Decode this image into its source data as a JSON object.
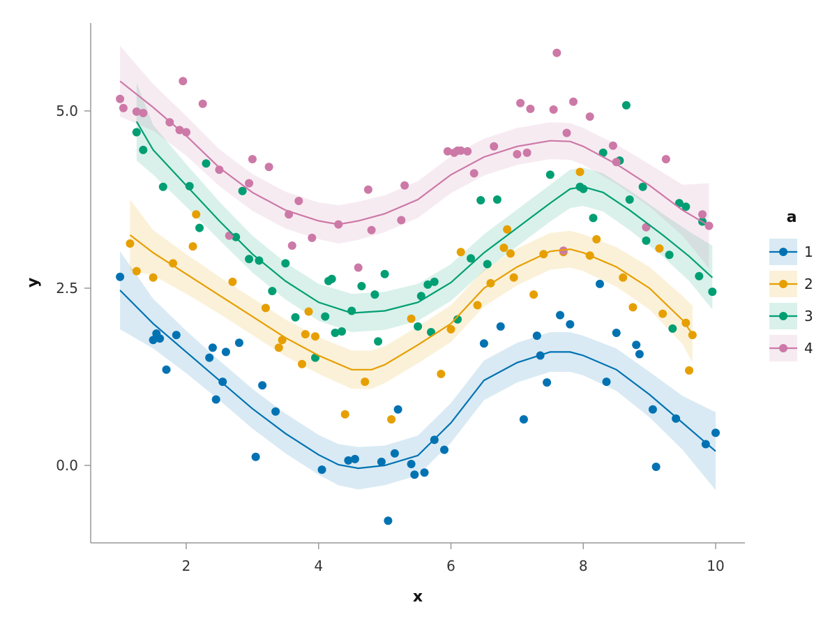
{
  "chart_data": {
    "type": "scatter",
    "xlabel": "x",
    "ylabel": "y",
    "xlim": [
      0.5,
      10.5
    ],
    "ylim": [
      -1.1,
      6.2
    ],
    "xticks": [
      2,
      4,
      6,
      8,
      10
    ],
    "xtick_labels": [
      "2",
      "4",
      "6",
      "8",
      "10"
    ],
    "yticks": [
      0.0,
      2.5,
      5.0
    ],
    "ytick_labels": [
      "0.0",
      "2.5",
      "5.0"
    ],
    "grid": false,
    "legend": {
      "title": "a",
      "position": "right"
    },
    "series": [
      {
        "name": "1",
        "color": "#0072B2",
        "points": [
          [
            1.0,
            2.66
          ],
          [
            1.5,
            1.77
          ],
          [
            1.55,
            1.86
          ],
          [
            1.6,
            1.79
          ],
          [
            1.7,
            1.35
          ],
          [
            1.85,
            1.84
          ],
          [
            2.35,
            1.52
          ],
          [
            2.4,
            1.66
          ],
          [
            2.45,
            0.93
          ],
          [
            2.55,
            1.18
          ],
          [
            2.6,
            1.6
          ],
          [
            2.8,
            1.73
          ],
          [
            3.05,
            0.12
          ],
          [
            3.15,
            1.13
          ],
          [
            3.35,
            0.76
          ],
          [
            4.05,
            -0.06
          ],
          [
            4.45,
            0.07
          ],
          [
            4.55,
            0.09
          ],
          [
            4.95,
            0.05
          ],
          [
            5.05,
            -0.78
          ],
          [
            5.15,
            0.17
          ],
          [
            5.2,
            0.79
          ],
          [
            5.4,
            0.02
          ],
          [
            5.45,
            -0.13
          ],
          [
            5.6,
            -0.1
          ],
          [
            5.75,
            0.36
          ],
          [
            5.9,
            0.22
          ],
          [
            6.5,
            1.72
          ],
          [
            6.75,
            1.96
          ],
          [
            7.1,
            0.65
          ],
          [
            7.3,
            1.83
          ],
          [
            7.35,
            1.55
          ],
          [
            7.45,
            1.17
          ],
          [
            7.65,
            2.12
          ],
          [
            7.8,
            1.99
          ],
          [
            8.25,
            2.56
          ],
          [
            8.35,
            1.18
          ],
          [
            8.5,
            1.87
          ],
          [
            8.8,
            1.7
          ],
          [
            8.85,
            1.57
          ],
          [
            9.05,
            0.79
          ],
          [
            9.1,
            -0.02
          ],
          [
            9.4,
            0.66
          ],
          [
            9.85,
            0.3
          ],
          [
            10.0,
            0.46
          ]
        ],
        "fit": [
          [
            1.0,
            2.47
          ],
          [
            1.5,
            2.0
          ],
          [
            2.0,
            1.6
          ],
          [
            2.5,
            1.2
          ],
          [
            3.0,
            0.8
          ],
          [
            3.5,
            0.45
          ],
          [
            4.0,
            0.15
          ],
          [
            4.3,
            0.01
          ],
          [
            4.6,
            -0.04
          ],
          [
            5.0,
            0.0
          ],
          [
            5.5,
            0.14
          ],
          [
            6.0,
            0.6
          ],
          [
            6.5,
            1.2
          ],
          [
            7.0,
            1.45
          ],
          [
            7.5,
            1.6
          ],
          [
            7.8,
            1.6
          ],
          [
            8.0,
            1.55
          ],
          [
            8.5,
            1.35
          ],
          [
            9.0,
            1.0
          ],
          [
            9.5,
            0.6
          ],
          [
            10.0,
            0.2
          ]
        ],
        "band": [
          0.55,
          0.35,
          0.3,
          0.28,
          0.28,
          0.28,
          0.28,
          0.29,
          0.3,
          0.28,
          0.28,
          0.28,
          0.28,
          0.28,
          0.28,
          0.28,
          0.28,
          0.3,
          0.32,
          0.38,
          0.55
        ]
      },
      {
        "name": "2",
        "color": "#E69F00",
        "points": [
          [
            1.15,
            3.13
          ],
          [
            1.25,
            2.74
          ],
          [
            1.5,
            2.65
          ],
          [
            1.8,
            2.85
          ],
          [
            2.1,
            3.09
          ],
          [
            2.15,
            3.54
          ],
          [
            2.7,
            2.59
          ],
          [
            3.2,
            2.22
          ],
          [
            3.4,
            1.66
          ],
          [
            3.45,
            1.77
          ],
          [
            3.75,
            1.43
          ],
          [
            3.8,
            1.85
          ],
          [
            3.85,
            2.17
          ],
          [
            3.95,
            1.82
          ],
          [
            4.4,
            0.72
          ],
          [
            4.7,
            1.18
          ],
          [
            5.1,
            0.65
          ],
          [
            5.4,
            2.07
          ],
          [
            5.85,
            1.29
          ],
          [
            6.0,
            1.92
          ],
          [
            6.15,
            3.01
          ],
          [
            6.4,
            2.26
          ],
          [
            6.6,
            2.57
          ],
          [
            6.8,
            3.07
          ],
          [
            6.85,
            3.33
          ],
          [
            6.9,
            2.99
          ],
          [
            6.95,
            2.65
          ],
          [
            7.25,
            2.41
          ],
          [
            7.4,
            2.98
          ],
          [
            7.7,
            3.01
          ],
          [
            7.95,
            4.14
          ],
          [
            8.1,
            2.96
          ],
          [
            8.2,
            3.19
          ],
          [
            8.6,
            2.65
          ],
          [
            8.75,
            2.23
          ],
          [
            9.15,
            3.06
          ],
          [
            9.2,
            2.14
          ],
          [
            9.55,
            2.01
          ],
          [
            9.6,
            1.34
          ],
          [
            9.65,
            1.84
          ]
        ],
        "fit": [
          [
            1.15,
            3.25
          ],
          [
            1.5,
            3.0
          ],
          [
            2.0,
            2.7
          ],
          [
            2.5,
            2.4
          ],
          [
            3.0,
            2.1
          ],
          [
            3.5,
            1.8
          ],
          [
            4.0,
            1.55
          ],
          [
            4.5,
            1.35
          ],
          [
            4.8,
            1.35
          ],
          [
            5.0,
            1.42
          ],
          [
            5.5,
            1.7
          ],
          [
            6.0,
            2.0
          ],
          [
            6.5,
            2.5
          ],
          [
            7.0,
            2.8
          ],
          [
            7.5,
            3.02
          ],
          [
            7.8,
            3.05
          ],
          [
            8.0,
            3.0
          ],
          [
            8.5,
            2.8
          ],
          [
            9.0,
            2.5
          ],
          [
            9.5,
            2.05
          ],
          [
            9.65,
            1.85
          ]
        ],
        "band": [
          0.5,
          0.32,
          0.28,
          0.26,
          0.26,
          0.26,
          0.26,
          0.27,
          0.27,
          0.26,
          0.26,
          0.26,
          0.26,
          0.26,
          0.26,
          0.26,
          0.26,
          0.28,
          0.3,
          0.34,
          0.4
        ]
      },
      {
        "name": "3",
        "color": "#009E73",
        "points": [
          [
            1.25,
            4.7
          ],
          [
            1.35,
            4.45
          ],
          [
            1.65,
            3.93
          ],
          [
            2.05,
            3.94
          ],
          [
            2.2,
            3.35
          ],
          [
            2.3,
            4.26
          ],
          [
            2.75,
            3.22
          ],
          [
            2.85,
            3.87
          ],
          [
            2.95,
            2.91
          ],
          [
            3.1,
            2.89
          ],
          [
            3.3,
            2.46
          ],
          [
            3.5,
            2.85
          ],
          [
            3.65,
            2.09
          ],
          [
            3.95,
            1.52
          ],
          [
            4.1,
            2.1
          ],
          [
            4.15,
            2.6
          ],
          [
            4.2,
            2.63
          ],
          [
            4.25,
            1.87
          ],
          [
            4.35,
            1.89
          ],
          [
            4.5,
            2.18
          ],
          [
            4.65,
            2.53
          ],
          [
            4.85,
            2.41
          ],
          [
            4.9,
            1.75
          ],
          [
            5.0,
            2.7
          ],
          [
            5.5,
            1.96
          ],
          [
            5.55,
            2.39
          ],
          [
            5.65,
            2.55
          ],
          [
            5.7,
            1.88
          ],
          [
            5.75,
            2.59
          ],
          [
            6.1,
            2.06
          ],
          [
            6.3,
            2.92
          ],
          [
            6.45,
            3.74
          ],
          [
            6.55,
            2.84
          ],
          [
            6.7,
            3.75
          ],
          [
            7.5,
            4.1
          ],
          [
            7.95,
            3.93
          ],
          [
            8.0,
            3.9
          ],
          [
            8.15,
            3.49
          ],
          [
            8.3,
            4.41
          ],
          [
            8.55,
            4.3
          ],
          [
            8.65,
            5.08
          ],
          [
            8.7,
            3.75
          ],
          [
            8.9,
            3.93
          ],
          [
            8.95,
            3.17
          ],
          [
            9.3,
            2.97
          ],
          [
            9.35,
            1.93
          ],
          [
            9.45,
            3.7
          ],
          [
            9.55,
            3.65
          ],
          [
            9.75,
            2.67
          ],
          [
            9.8,
            3.44
          ],
          [
            9.95,
            2.45
          ]
        ],
        "fit": [
          [
            1.25,
            4.85
          ],
          [
            1.5,
            4.45
          ],
          [
            2.0,
            3.95
          ],
          [
            2.5,
            3.45
          ],
          [
            3.0,
            2.98
          ],
          [
            3.5,
            2.6
          ],
          [
            4.0,
            2.3
          ],
          [
            4.5,
            2.15
          ],
          [
            5.0,
            2.18
          ],
          [
            5.5,
            2.3
          ],
          [
            6.0,
            2.58
          ],
          [
            6.5,
            3.0
          ],
          [
            7.0,
            3.35
          ],
          [
            7.5,
            3.7
          ],
          [
            7.8,
            3.9
          ],
          [
            8.0,
            3.93
          ],
          [
            8.3,
            3.85
          ],
          [
            8.7,
            3.6
          ],
          [
            9.2,
            3.25
          ],
          [
            9.6,
            2.95
          ],
          [
            9.95,
            2.65
          ]
        ],
        "band": [
          0.55,
          0.35,
          0.3,
          0.27,
          0.26,
          0.26,
          0.26,
          0.27,
          0.27,
          0.26,
          0.26,
          0.26,
          0.26,
          0.26,
          0.27,
          0.27,
          0.27,
          0.28,
          0.3,
          0.35,
          0.45
        ]
      },
      {
        "name": "4",
        "color": "#CC79A7",
        "points": [
          [
            1.0,
            5.17
          ],
          [
            1.05,
            5.04
          ],
          [
            1.25,
            4.99
          ],
          [
            1.35,
            4.97
          ],
          [
            1.75,
            4.84
          ],
          [
            1.9,
            4.73
          ],
          [
            1.95,
            5.42
          ],
          [
            2.0,
            4.7
          ],
          [
            2.25,
            5.1
          ],
          [
            2.5,
            4.17
          ],
          [
            2.65,
            3.24
          ],
          [
            2.95,
            3.98
          ],
          [
            3.0,
            4.32
          ],
          [
            3.25,
            4.21
          ],
          [
            3.55,
            3.54
          ],
          [
            3.6,
            3.1
          ],
          [
            3.7,
            3.73
          ],
          [
            3.9,
            3.21
          ],
          [
            4.3,
            3.4
          ],
          [
            4.6,
            2.79
          ],
          [
            4.75,
            3.89
          ],
          [
            4.8,
            3.32
          ],
          [
            5.25,
            3.46
          ],
          [
            5.3,
            3.95
          ],
          [
            5.95,
            4.43
          ],
          [
            6.05,
            4.41
          ],
          [
            6.1,
            4.44
          ],
          [
            6.15,
            4.44
          ],
          [
            6.25,
            4.43
          ],
          [
            6.35,
            4.12
          ],
          [
            6.65,
            4.5
          ],
          [
            7.0,
            4.39
          ],
          [
            7.05,
            5.11
          ],
          [
            7.15,
            4.41
          ],
          [
            7.2,
            5.03
          ],
          [
            7.55,
            5.02
          ],
          [
            7.6,
            5.82
          ],
          [
            7.7,
            3.03
          ],
          [
            7.75,
            4.69
          ],
          [
            7.85,
            5.13
          ],
          [
            8.1,
            4.92
          ],
          [
            8.45,
            4.51
          ],
          [
            8.5,
            4.28
          ],
          [
            8.95,
            3.36
          ],
          [
            9.25,
            4.32
          ],
          [
            9.8,
            3.54
          ],
          [
            9.9,
            3.38
          ]
        ],
        "fit": [
          [
            1.0,
            5.42
          ],
          [
            1.5,
            5.05
          ],
          [
            2.0,
            4.65
          ],
          [
            2.5,
            4.2
          ],
          [
            3.0,
            3.85
          ],
          [
            3.5,
            3.6
          ],
          [
            4.0,
            3.45
          ],
          [
            4.3,
            3.4
          ],
          [
            4.6,
            3.45
          ],
          [
            5.0,
            3.55
          ],
          [
            5.5,
            3.75
          ],
          [
            6.0,
            4.1
          ],
          [
            6.5,
            4.35
          ],
          [
            7.0,
            4.5
          ],
          [
            7.5,
            4.58
          ],
          [
            7.8,
            4.57
          ],
          [
            8.0,
            4.5
          ],
          [
            8.5,
            4.25
          ],
          [
            9.0,
            3.95
          ],
          [
            9.5,
            3.6
          ],
          [
            9.9,
            3.38
          ]
        ],
        "band": [
          0.5,
          0.33,
          0.28,
          0.26,
          0.26,
          0.26,
          0.26,
          0.27,
          0.27,
          0.26,
          0.26,
          0.26,
          0.26,
          0.26,
          0.26,
          0.26,
          0.26,
          0.28,
          0.3,
          0.36,
          0.6
        ]
      }
    ]
  }
}
